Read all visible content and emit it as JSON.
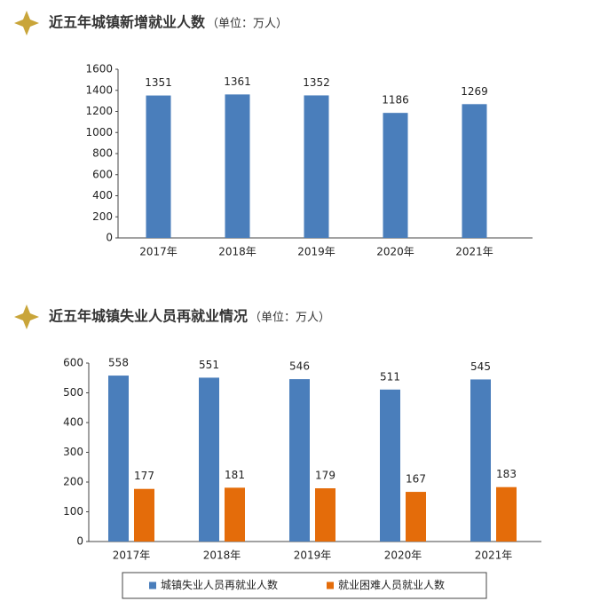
{
  "chart_data": [
    {
      "type": "bar",
      "title": "近五年城镇新增就业人数",
      "subtitle": "（单位：万人）",
      "categories": [
        "2017年",
        "2018年",
        "2019年",
        "2020年",
        "2021年"
      ],
      "series": [
        {
          "name": null,
          "color": "#4a7ebb",
          "values": [
            1351,
            1361,
            1352,
            1186,
            1269
          ]
        }
      ],
      "ylim": [
        0,
        1600
      ],
      "yticks": [
        0,
        200,
        400,
        600,
        800,
        1000,
        1200,
        1400,
        1600
      ],
      "legend": false
    },
    {
      "type": "bar",
      "title": "近五年城镇失业人员再就业情况",
      "subtitle": "（单位：万人）",
      "categories": [
        "2017年",
        "2018年",
        "2019年",
        "2020年",
        "2021年"
      ],
      "series": [
        {
          "name": "城镇失业人员再就业人数",
          "color": "#4a7ebb",
          "values": [
            558,
            551,
            546,
            511,
            545
          ]
        },
        {
          "name": "就业困难人员就业人数",
          "color": "#e46c0a",
          "values": [
            177,
            181,
            179,
            167,
            183
          ]
        }
      ],
      "ylim": [
        0,
        600
      ],
      "yticks": [
        0,
        100,
        200,
        300,
        400,
        500,
        600
      ],
      "legend": "bottom"
    }
  ]
}
